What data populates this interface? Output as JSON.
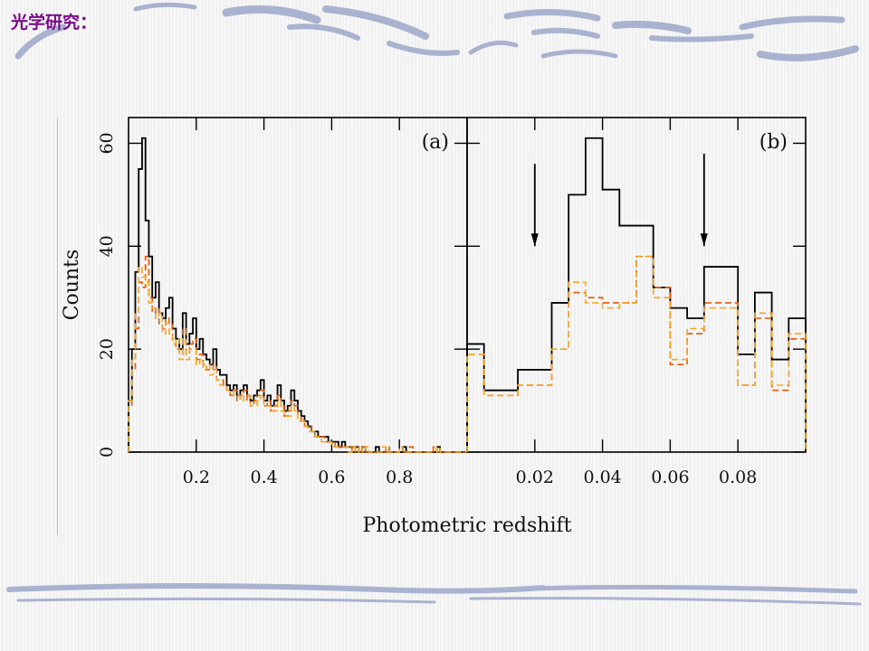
{
  "slide": {
    "title": "光学研究：",
    "colors": {
      "title": "#7a0c8a",
      "decoration": "#a9b3cf"
    }
  },
  "chart_data": [
    {
      "panel_label": "(a)",
      "type": "histogram-step",
      "xlabel": "Photometric redshift",
      "ylabel": "Counts",
      "xlim": [
        0.0,
        1.0
      ],
      "ylim": [
        0,
        65
      ],
      "x_ticks": [
        0.2,
        0.4,
        0.6,
        0.8
      ],
      "x_tick_labels": [
        "0.2",
        "0.4",
        "0.6",
        "0.8"
      ],
      "y_ticks": [
        0,
        20,
        40,
        60
      ],
      "y_tick_labels": [
        "0",
        "20",
        "40",
        "60"
      ],
      "bin_width": 0.01,
      "series": [
        {
          "style": "solid",
          "color": "#000000",
          "values": [
            10,
            20,
            35,
            55,
            61,
            45,
            38,
            30,
            33,
            27,
            26,
            28,
            30,
            24,
            22,
            20,
            27,
            21,
            23,
            26,
            20,
            22,
            19,
            18,
            17,
            20,
            16,
            15,
            15,
            13,
            12,
            13,
            11,
            12,
            13,
            11,
            10,
            11,
            12,
            14,
            10,
            11,
            9,
            10,
            13,
            10,
            8,
            9,
            12,
            10,
            8,
            7,
            6,
            5,
            4,
            4,
            3,
            3,
            3,
            2,
            2,
            2,
            1,
            2,
            1,
            1,
            1,
            1,
            0,
            1,
            0,
            0,
            0,
            1,
            0,
            0,
            0,
            0,
            0,
            0,
            0,
            1,
            0,
            0,
            0,
            0,
            0,
            0,
            0,
            0,
            0,
            1,
            0,
            0,
            0,
            0,
            0,
            0,
            0,
            0
          ]
        },
        {
          "style": "dashed",
          "color": "#e05a0a",
          "values": [
            9,
            16,
            24,
            33,
            32,
            38,
            30,
            27,
            28,
            25,
            24,
            26,
            25,
            22,
            20,
            19,
            24,
            19,
            21,
            22,
            18,
            19,
            17,
            16,
            16,
            17,
            14,
            14,
            13,
            12,
            11,
            12,
            10,
            11,
            12,
            10,
            9,
            10,
            11,
            12,
            9,
            10,
            8,
            9,
            11,
            9,
            7,
            8,
            10,
            9,
            7,
            6,
            5,
            5,
            4,
            3,
            3,
            3,
            2,
            2,
            2,
            1,
            1,
            1,
            1,
            1,
            0,
            1,
            0,
            1,
            0,
            0,
            0,
            0,
            0,
            0,
            1,
            0,
            0,
            0,
            0,
            0,
            0,
            1,
            0,
            0,
            0,
            0,
            0,
            0,
            1,
            0,
            0,
            0,
            0,
            0,
            0,
            0,
            0,
            0
          ]
        },
        {
          "style": "dashed",
          "color": "#f5a623",
          "values": [
            10,
            18,
            27,
            36,
            34,
            33,
            29,
            28,
            26,
            27,
            23,
            25,
            23,
            21,
            22,
            18,
            22,
            18,
            20,
            20,
            17,
            18,
            16,
            17,
            15,
            16,
            14,
            13,
            13,
            12,
            12,
            11,
            11,
            10,
            11,
            11,
            9,
            9,
            10,
            11,
            9,
            9,
            8,
            8,
            10,
            8,
            7,
            7,
            9,
            8,
            6,
            6,
            5,
            4,
            4,
            3,
            3,
            2,
            2,
            2,
            1,
            1,
            1,
            1,
            1,
            0,
            1,
            0,
            1,
            0,
            1,
            0,
            0,
            0,
            0,
            1,
            0,
            0,
            0,
            0,
            1,
            0,
            0,
            0,
            0,
            0,
            0,
            0,
            0,
            0,
            0,
            1,
            0,
            0,
            0,
            0,
            0,
            0,
            0,
            0
          ]
        }
      ]
    },
    {
      "panel_label": "(b)",
      "type": "histogram-step",
      "xlim": [
        0.0,
        0.1
      ],
      "ylim": [
        0,
        65
      ],
      "x_ticks": [
        0.02,
        0.04,
        0.06,
        0.08
      ],
      "x_tick_labels": [
        "0.02",
        "0.04",
        "0.06",
        "0.08"
      ],
      "edges": [
        0.0,
        0.005,
        0.015,
        0.025,
        0.03,
        0.035,
        0.04,
        0.045,
        0.05,
        0.055,
        0.06,
        0.065,
        0.07,
        0.08,
        0.085,
        0.09,
        0.095,
        0.1
      ],
      "series": [
        {
          "style": "solid",
          "color": "#000000",
          "values": [
            21,
            12,
            16,
            29,
            50,
            61,
            51,
            44,
            44,
            32,
            28,
            26,
            36,
            19,
            31,
            18,
            26
          ]
        },
        {
          "style": "dashed",
          "color": "#e05a0a",
          "values": [
            19,
            11,
            13,
            20,
            31,
            30,
            29,
            29,
            38,
            32,
            17,
            23,
            29,
            13,
            26,
            12,
            22
          ]
        },
        {
          "style": "dashed",
          "color": "#f5a623",
          "values": [
            19,
            11,
            13,
            20,
            33,
            29,
            28,
            29,
            38,
            30,
            18,
            24,
            28,
            13,
            27,
            13,
            23
          ]
        }
      ],
      "annotations": [
        {
          "type": "arrow-down",
          "x": 0.02,
          "y_from": 56,
          "y_to": 40
        },
        {
          "type": "arrow-down",
          "x": 0.07,
          "y_from": 58,
          "y_to": 40
        }
      ]
    }
  ]
}
